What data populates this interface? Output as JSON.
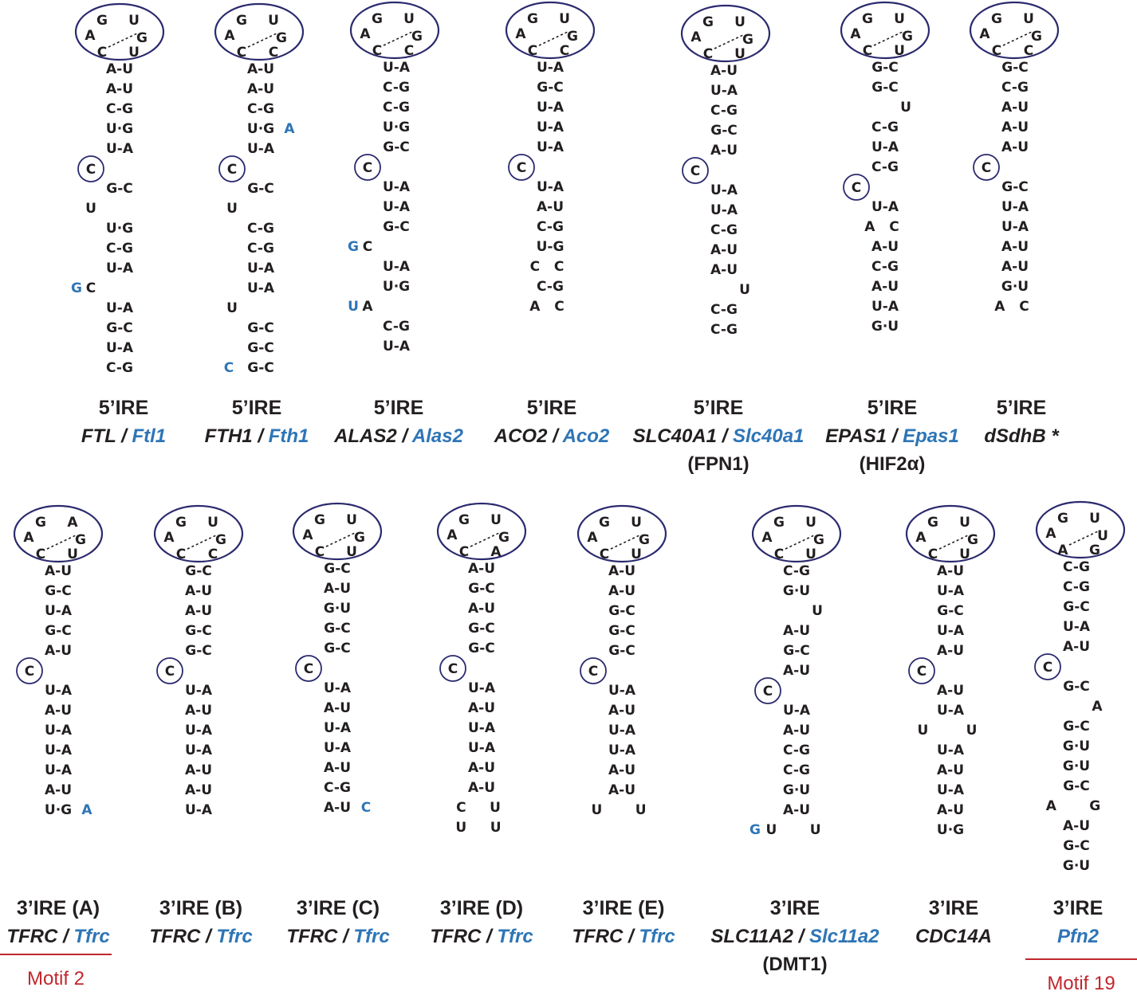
{
  "panels": [
    {
      "id": "ftl",
      "type": "5’IRE",
      "gene_human": "FTL",
      "gene_mouse": "Ftl1",
      "alias": "",
      "loop": [
        "G",
        "U",
        "A",
        "G",
        "C",
        "U"
      ],
      "stem_top": [
        "A-U",
        "A-U",
        "C-G",
        "U·G",
        "U-A"
      ],
      "bulge": "C",
      "lower": [
        {
          "t": "G-C"
        },
        {
          "t": "U",
          "pos": "left"
        },
        {
          "t": "U·G"
        },
        {
          "t": "C-G"
        },
        {
          "t": "U-A"
        },
        {
          "t": "C",
          "pos": "left",
          "blue": "G"
        },
        {
          "t": "U-A"
        },
        {
          "t": "G-C"
        },
        {
          "t": "U-A"
        },
        {
          "t": "C-G"
        }
      ]
    },
    {
      "id": "fth1",
      "type": "5’IRE",
      "gene_human": "FTH1",
      "gene_mouse": "Fth1",
      "alias": "",
      "loop": [
        "G",
        "U",
        "A",
        "G",
        "C",
        "C"
      ],
      "stem_top": [
        "A-U",
        "A-U",
        "C-G",
        {
          "t": "U·G",
          "blue_r": "A"
        },
        "U-A"
      ],
      "bulge": "C",
      "lower": [
        {
          "t": "G-C"
        },
        {
          "t": "U",
          "pos": "left"
        },
        {
          "t": "C-G"
        },
        {
          "t": "C-G"
        },
        {
          "t": "U-A"
        },
        {
          "t": "U-A"
        },
        {
          "t": "U",
          "pos": "left"
        },
        {
          "t": "G-C"
        },
        {
          "t": "G-C"
        },
        {
          "t": "G-C",
          "blue": "C"
        }
      ]
    },
    {
      "id": "alas2",
      "type": "5’IRE",
      "gene_human": "ALAS2",
      "gene_mouse": "Alas2",
      "alias": "",
      "loop": [
        "G",
        "U",
        "A",
        "G",
        "C",
        "C"
      ],
      "stem_top": [
        "U-A",
        "C-G",
        "C-G",
        "U·G",
        "G-C"
      ],
      "bulge": "C",
      "lower": [
        {
          "t": "U-A"
        },
        {
          "t": "U-A"
        },
        {
          "t": "G-C"
        },
        {
          "t": "C",
          "pos": "left",
          "blue": "G"
        },
        {
          "t": "U-A"
        },
        {
          "t": "U·G"
        },
        {
          "t": "A",
          "pos": "left",
          "blue": "U"
        },
        {
          "t": "C-G"
        },
        {
          "t": "U-A"
        }
      ]
    },
    {
      "id": "aco2",
      "type": "5’IRE",
      "gene_human": "ACO2",
      "gene_mouse": "Aco2",
      "alias": "",
      "loop": [
        "G",
        "U",
        "A",
        "G",
        "C",
        "C"
      ],
      "stem_top": [
        "U-A",
        "G-C",
        "U-A",
        "U-A",
        "U-A"
      ],
      "bulge": "C",
      "lower": [
        {
          "t": "U-A"
        },
        {
          "t": "A-U"
        },
        {
          "t": "C-G"
        },
        {
          "t": "U-G"
        },
        {
          "t": "C   C",
          "pos": "wide"
        },
        {
          "t": "C-G"
        },
        {
          "t": "A   C",
          "pos": "wide"
        }
      ]
    },
    {
      "id": "slc40a1",
      "type": "5’IRE",
      "gene_human": "SLC40A1",
      "gene_mouse": "Slc40a1",
      "alias": "(FPN1)",
      "loop": [
        "G",
        "U",
        "A",
        "G",
        "C",
        "U"
      ],
      "stem_top": [
        "A-U",
        "U-A",
        "C-G",
        "G-C",
        "A-U"
      ],
      "bulge": "C",
      "lower": [
        {
          "t": "U-A"
        },
        {
          "t": "U-A"
        },
        {
          "t": "C-G"
        },
        {
          "t": "A-U"
        },
        {
          "t": "A-U"
        },
        {
          "t": "U",
          "pos": "right"
        },
        {
          "t": "C-G"
        },
        {
          "t": "C-G"
        }
      ]
    },
    {
      "id": "epas1",
      "type": "5’IRE",
      "gene_human": "EPAS1",
      "gene_mouse": "Epas1",
      "alias": "(HIF2α)",
      "loop": [
        "G",
        "U",
        "A",
        "G",
        "C",
        "U"
      ],
      "stem_top": [
        "G-C",
        "G-C",
        {
          "t": "U",
          "pos": "right"
        },
        "C-G",
        "U-A",
        "C-G"
      ],
      "bulge": "C",
      "lower": [
        {
          "t": "U-A"
        },
        {
          "t": "A   C",
          "pos": "wide"
        },
        {
          "t": "A-U"
        },
        {
          "t": "C-G"
        },
        {
          "t": "A-U"
        },
        {
          "t": "U-A"
        },
        {
          "t": "G·U"
        }
      ]
    },
    {
      "id": "sdhb",
      "type": "5’IRE",
      "gene_human": "dSdhB *",
      "gene_mouse": "",
      "alias": "",
      "loop": [
        "G",
        "U",
        "A",
        "G",
        "C",
        "C"
      ],
      "stem_top": [
        "G-C",
        "C-G",
        "A-U",
        "A-U",
        "A-U"
      ],
      "bulge": "C",
      "lower": [
        {
          "t": "G-C"
        },
        {
          "t": "U-A"
        },
        {
          "t": "U-A"
        },
        {
          "t": "A-U"
        },
        {
          "t": "A-U"
        },
        {
          "t": "G·U"
        },
        {
          "t": "A   C",
          "pos": "wide"
        }
      ]
    },
    {
      "id": "tfrc_a",
      "type": "3’IRE (A)",
      "gene_human": "TFRC",
      "gene_mouse": "Tfrc",
      "alias": "",
      "loop": [
        "G",
        "A",
        "A",
        "G",
        "C",
        "U"
      ],
      "stem_top": [
        "A-U",
        "G-C",
        "U-A",
        "G-C",
        "A-U"
      ],
      "bulge": "C",
      "lower": [
        {
          "t": "U-A"
        },
        {
          "t": "A-U"
        },
        {
          "t": "U-A"
        },
        {
          "t": "U-A"
        },
        {
          "t": "U-A"
        },
        {
          "t": "A-U"
        },
        {
          "t": "U·G",
          "blue_r": "A"
        }
      ]
    },
    {
      "id": "tfrc_b",
      "type": "3’IRE (B)",
      "gene_human": "TFRC",
      "gene_mouse": "Tfrc",
      "alias": "",
      "loop": [
        "G",
        "U",
        "A",
        "G",
        "C",
        "C"
      ],
      "stem_top": [
        "G-C",
        "A-U",
        "A-U",
        "G-C",
        "G-C"
      ],
      "bulge": "C",
      "lower": [
        {
          "t": "U-A"
        },
        {
          "t": "A-U"
        },
        {
          "t": "U-A"
        },
        {
          "t": "U-A"
        },
        {
          "t": "A-U"
        },
        {
          "t": "A-U"
        },
        {
          "t": "U-A"
        }
      ]
    },
    {
      "id": "tfrc_c",
      "type": "3’IRE (C)",
      "gene_human": "TFRC",
      "gene_mouse": "Tfrc",
      "alias": "",
      "loop": [
        "G",
        "U",
        "A",
        "G",
        "C",
        "U"
      ],
      "stem_top": [
        "G-C",
        "A-U",
        "G·U",
        "G-C",
        "G-C"
      ],
      "bulge": "C",
      "lower": [
        {
          "t": "U-A"
        },
        {
          "t": "A-U"
        },
        {
          "t": "U-A"
        },
        {
          "t": "U-A"
        },
        {
          "t": "A-U"
        },
        {
          "t": "C-G"
        },
        {
          "t": "A-U",
          "blue_r": "C"
        }
      ]
    },
    {
      "id": "tfrc_d",
      "type": "3’IRE (D)",
      "gene_human": "TFRC",
      "gene_mouse": "Tfrc",
      "alias": "",
      "loop": [
        "G",
        "U",
        "A",
        "G",
        "C",
        "A"
      ],
      "stem_top": [
        "A-U",
        "G-C",
        "A-U",
        "G-C",
        "G-C"
      ],
      "bulge": "C",
      "lower": [
        {
          "t": "U-A"
        },
        {
          "t": "A-U"
        },
        {
          "t": "U-A"
        },
        {
          "t": "U-A"
        },
        {
          "t": "A-U"
        },
        {
          "t": "A-U"
        },
        {
          "t": "C     U",
          "pos": "wide"
        },
        {
          "t": "U     U",
          "pos": "wide"
        }
      ]
    },
    {
      "id": "tfrc_e",
      "type": "3’IRE (E)",
      "gene_human": "TFRC",
      "gene_mouse": "Tfrc",
      "alias": "",
      "loop": [
        "G",
        "U",
        "A",
        "G",
        "C",
        "U"
      ],
      "stem_top": [
        "A-U",
        "A-U",
        "G-C",
        "G-C",
        "G-C"
      ],
      "bulge": "C",
      "lower": [
        {
          "t": "U-A"
        },
        {
          "t": "A-U"
        },
        {
          "t": "U-A"
        },
        {
          "t": "U-A"
        },
        {
          "t": "A-U"
        },
        {
          "t": "A-U"
        },
        {
          "t": "U       U",
          "pos": "wide"
        }
      ]
    },
    {
      "id": "slc11a2",
      "type": "3’IRE",
      "gene_human": "SLC11A2",
      "gene_mouse": "Slc11a2",
      "alias": "(DMT1)",
      "loop": [
        "G",
        "U",
        "A",
        "G",
        "C",
        "U"
      ],
      "stem_top": [
        "C-G",
        "G·U",
        {
          "t": "U",
          "pos": "right"
        },
        "A-U",
        "G-C",
        "A-U"
      ],
      "bulge": "C",
      "lower": [
        {
          "t": "U-A"
        },
        {
          "t": "A-U"
        },
        {
          "t": "C-G"
        },
        {
          "t": "C-G"
        },
        {
          "t": "G·U"
        },
        {
          "t": "A-U"
        },
        {
          "t": "U       U",
          "pos": "wide",
          "blue": "G"
        }
      ]
    },
    {
      "id": "cdc14a",
      "type": "3’IRE",
      "gene_human": "CDC14A",
      "gene_mouse": "",
      "alias": "",
      "loop": [
        "G",
        "U",
        "A",
        "G",
        "C",
        "U"
      ],
      "stem_top": [
        "A-U",
        "U-A",
        "G-C",
        "U-A",
        "A-U"
      ],
      "bulge": "C",
      "lower": [
        {
          "t": "A-U"
        },
        {
          "t": "U-A"
        },
        {
          "t": "U        U",
          "pos": "wide"
        },
        {
          "t": "U-A"
        },
        {
          "t": "A-U"
        },
        {
          "t": "U-A"
        },
        {
          "t": "A-U"
        },
        {
          "t": "U·G"
        }
      ]
    },
    {
      "id": "pfn2",
      "type": "3’IRE",
      "gene_human": "",
      "gene_mouse": "Pfn2",
      "alias": "",
      "loop": [
        "G",
        "U",
        "A",
        "U",
        "A",
        "G"
      ],
      "stem_top": [
        "C-G",
        "C-G",
        "G-C",
        "U-A",
        "A-U"
      ],
      "bulge": "C",
      "lower": [
        {
          "t": "G-C"
        },
        {
          "t": "A",
          "pos": "right"
        },
        {
          "t": "G-C"
        },
        {
          "t": "G·U"
        },
        {
          "t": "G·U"
        },
        {
          "t": "G-C"
        },
        {
          "t": "A       G",
          "pos": "wide"
        },
        {
          "t": "A-U"
        },
        {
          "t": "G-C"
        },
        {
          "t": "G·U"
        }
      ]
    }
  ],
  "motifs": [
    {
      "label": "Motif 2",
      "under": "tfrc_a"
    },
    {
      "label": "Motif 19",
      "under": "pfn2"
    }
  ],
  "colors": {
    "loop_outline": "#2b2a6e",
    "mouse_gene": "#2e75b6",
    "motif": "#c0272d",
    "text": "#231f20"
  }
}
